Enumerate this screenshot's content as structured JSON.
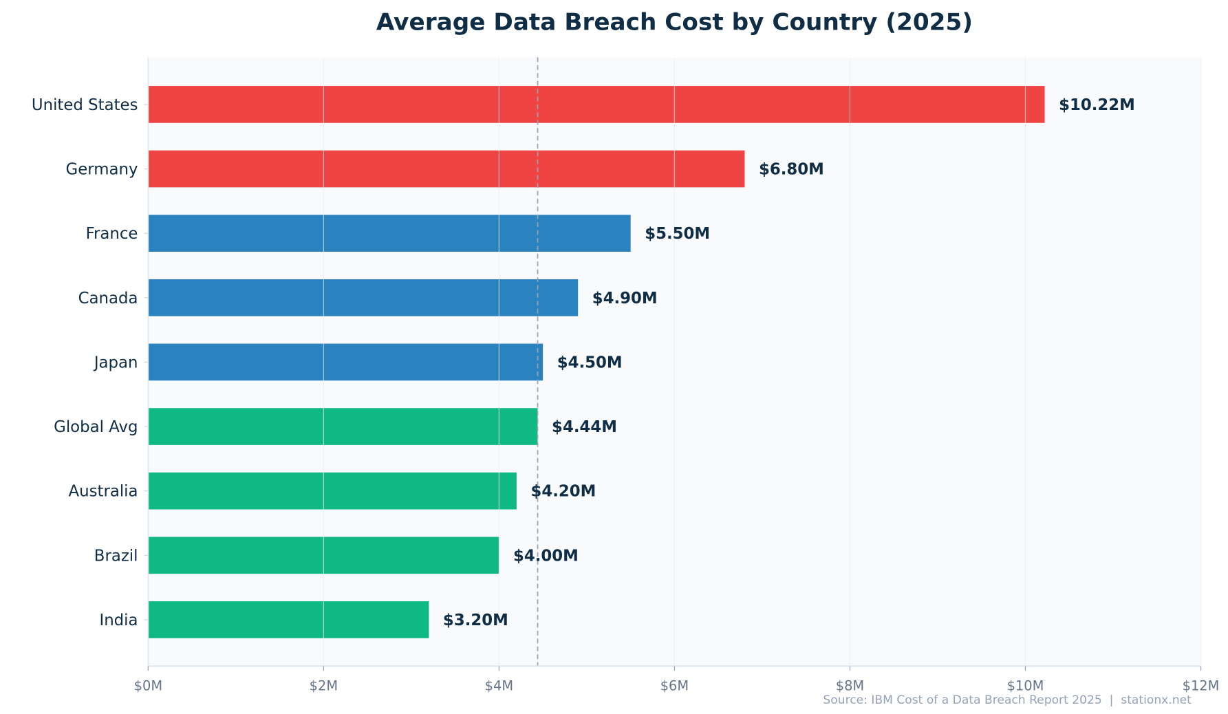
{
  "chart_data": {
    "type": "bar",
    "orientation": "horizontal",
    "title": "Average Data Breach Cost by Country (2025)",
    "categories": [
      "United States",
      "Germany",
      "France",
      "Canada",
      "Japan",
      "Global Avg",
      "Australia",
      "Brazil",
      "India"
    ],
    "values": [
      10.22,
      6.8,
      5.5,
      4.9,
      4.5,
      4.44,
      4.2,
      4.0,
      3.2
    ],
    "value_labels": [
      "$10.22M",
      "$6.80M",
      "$5.50M",
      "$4.90M",
      "$4.50M",
      "$4.44M",
      "$4.20M",
      "$4.00M",
      "$3.20M"
    ],
    "bar_colors": [
      "#ef4444",
      "#ef4444",
      "#2a82be",
      "#2a82be",
      "#2a82be",
      "#10b981",
      "#10b981",
      "#10b981",
      "#10b981"
    ],
    "xlim": [
      0,
      12
    ],
    "x_ticks": [
      0,
      2,
      4,
      6,
      8,
      10,
      12
    ],
    "x_tick_labels": [
      "$0M",
      "$2M",
      "$4M",
      "$6M",
      "$8M",
      "$10M",
      "$12M"
    ],
    "reference_line": {
      "value": 4.44,
      "style": "dashed"
    },
    "grid": "vertical",
    "xlabel": "",
    "ylabel": "",
    "source": "Source: IBM Cost of a Data Breach Report 2025  |  stationx.net",
    "colors": {
      "text": "#0f2d44",
      "plot_bg": "#f8fafc",
      "tick_text": "#64748b",
      "source_text": "#94a3b8"
    }
  }
}
